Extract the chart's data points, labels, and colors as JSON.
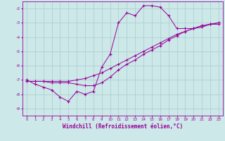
{
  "xlabel": "Windchill (Refroidissement éolien,°C)",
  "background_color": "#cce8e8",
  "grid_color": "#aacccc",
  "line_color": "#990099",
  "xlim": [
    -0.5,
    23.5
  ],
  "ylim": [
    -9.5,
    -1.5
  ],
  "yticks": [
    -9,
    -8,
    -7,
    -6,
    -5,
    -4,
    -3,
    -2
  ],
  "xticks": [
    0,
    1,
    2,
    3,
    4,
    5,
    6,
    7,
    8,
    9,
    10,
    11,
    12,
    13,
    14,
    15,
    16,
    17,
    18,
    19,
    20,
    21,
    22,
    23
  ],
  "series1_x": [
    0,
    1,
    2,
    3,
    4,
    5,
    6,
    7,
    8,
    9,
    10,
    11,
    12,
    13,
    14,
    15,
    16,
    17,
    18,
    19,
    20,
    21,
    22,
    23
  ],
  "series1_y": [
    -7.0,
    -7.3,
    -7.5,
    -7.7,
    -8.2,
    -8.5,
    -7.8,
    -8.0,
    -7.8,
    -6.1,
    -5.2,
    -3.0,
    -2.3,
    -2.5,
    -1.8,
    -1.8,
    -1.9,
    -2.5,
    -3.4,
    -3.4,
    -3.4,
    -3.3,
    -3.1,
    -3.1
  ],
  "series2_x": [
    0,
    1,
    2,
    3,
    4,
    5,
    6,
    7,
    8,
    9,
    10,
    11,
    12,
    13,
    14,
    15,
    16,
    17,
    18,
    19,
    20,
    21,
    22,
    23
  ],
  "series2_y": [
    -7.1,
    -7.1,
    -7.1,
    -7.1,
    -7.1,
    -7.1,
    -7.0,
    -6.9,
    -6.7,
    -6.5,
    -6.2,
    -5.9,
    -5.6,
    -5.3,
    -5.0,
    -4.7,
    -4.4,
    -4.1,
    -3.8,
    -3.6,
    -3.4,
    -3.2,
    -3.1,
    -3.0
  ],
  "series3_x": [
    0,
    1,
    2,
    3,
    4,
    5,
    6,
    7,
    8,
    9,
    10,
    11,
    12,
    13,
    14,
    15,
    16,
    17,
    18,
    19,
    20,
    21,
    22,
    23
  ],
  "series3_y": [
    -7.1,
    -7.1,
    -7.1,
    -7.2,
    -7.2,
    -7.2,
    -7.3,
    -7.4,
    -7.4,
    -7.2,
    -6.8,
    -6.3,
    -5.9,
    -5.6,
    -5.2,
    -4.9,
    -4.6,
    -4.2,
    -3.9,
    -3.6,
    -3.4,
    -3.2,
    -3.1,
    -3.0
  ]
}
